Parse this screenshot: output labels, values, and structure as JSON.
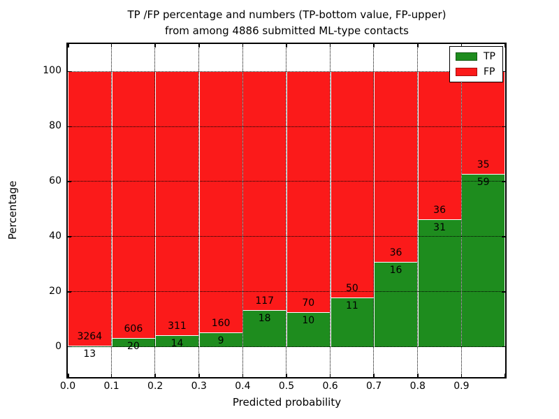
{
  "title": {
    "line1": "TP /FP percentage and numbers (TP-bottom value, FP-upper)",
    "line2": "from among 4886 submitted ML-type contacts"
  },
  "axes": {
    "xlabel": "Predicted probability",
    "ylabel": "Percentage",
    "xtick_labels": [
      "0.0",
      "0.1",
      "0.2",
      "0.3",
      "0.4",
      "0.5",
      "0.6",
      "0.7",
      "0.8",
      "0.9"
    ],
    "ytick_labels": [
      "0",
      "20",
      "40",
      "60",
      "80",
      "100"
    ],
    "ytick_values": [
      0,
      20,
      40,
      60,
      80,
      100
    ]
  },
  "legend": {
    "entries": [
      {
        "label": "TP",
        "color": "#1e8c1e"
      },
      {
        "label": "FP",
        "color": "#fb1a1a"
      }
    ],
    "position": "upper right"
  },
  "colors": {
    "tp_green": "#1e8c1e",
    "fp_red": "#fb1a1a",
    "grid": "#000000",
    "bar_edge": "#ffffff"
  },
  "chart_data": {
    "type": "bar",
    "variant": "stacked-percentage",
    "title": "TP /FP percentage and numbers (TP-bottom value, FP-upper) from among 4886 submitted ML-type contacts",
    "xlabel": "Predicted probability",
    "ylabel": "Percentage",
    "total_contacts": 4886,
    "categories": [
      "0.0-0.1",
      "0.1-0.2",
      "0.2-0.3",
      "0.3-0.4",
      "0.4-0.5",
      "0.5-0.6",
      "0.6-0.7",
      "0.7-0.8",
      "0.8-0.9",
      "0.9-1.0"
    ],
    "series": [
      {
        "name": "TP",
        "color": "#1e8c1e",
        "counts": [
          13,
          20,
          14,
          9,
          18,
          10,
          11,
          16,
          31,
          59
        ]
      },
      {
        "name": "FP",
        "color": "#fb1a1a",
        "counts": [
          3264,
          606,
          311,
          160,
          117,
          70,
          50,
          36,
          36,
          35
        ]
      }
    ],
    "bar_label_rule": "FP count printed above TP/FP boundary, TP count printed below boundary",
    "xlim": [
      0.0,
      1.0
    ],
    "ylim": [
      -11,
      110
    ],
    "grid": {
      "on": true,
      "linestyle": "dotted",
      "color": "#000000"
    },
    "legend_position": "upper right"
  }
}
